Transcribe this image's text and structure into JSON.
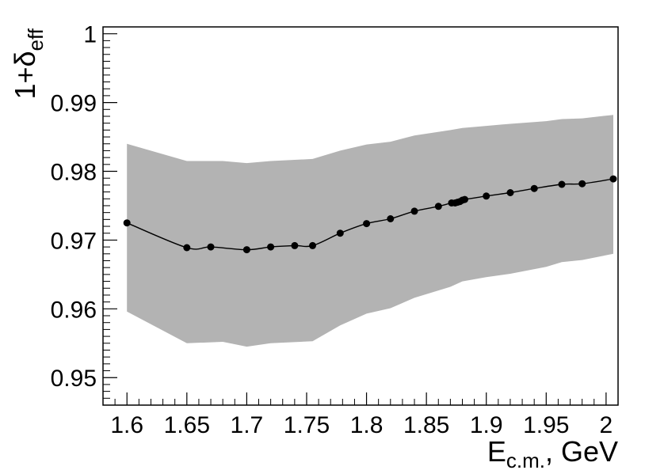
{
  "chart_data": {
    "type": "line",
    "xlabel_main": "E",
    "xlabel_sub": "c.m.",
    "xlabel_rest": ", GeV",
    "ylabel_main": "1+δ",
    "ylabel_sub": "eff",
    "xlim": [
      1.58,
      2.01
    ],
    "ylim": [
      0.946,
      1.001
    ],
    "x_ticks": [
      "1.6",
      "1.65",
      "1.7",
      "1.75",
      "1.8",
      "1.85",
      "1.9",
      "1.95",
      "2"
    ],
    "y_ticks": [
      "0.95",
      "0.96",
      "0.97",
      "0.98",
      "0.99",
      "1"
    ],
    "grid": false,
    "colors": {
      "band": "#b3b3b3",
      "line": "#000000",
      "points": "#000000"
    },
    "series": [
      {
        "x": [
          1.6,
          1.65,
          1.67,
          1.7,
          1.72,
          1.74,
          1.755,
          1.778,
          1.8,
          1.82,
          1.84,
          1.86,
          1.871,
          1.874,
          1.876,
          1.878,
          1.88,
          1.882,
          1.9,
          1.92,
          1.94,
          1.963,
          1.98,
          2.006
        ],
        "y": [
          0.9725,
          0.9689,
          0.969,
          0.9686,
          0.969,
          0.9692,
          0.9692,
          0.971,
          0.9724,
          0.9731,
          0.9742,
          0.9749,
          0.9754,
          0.9754,
          0.9755,
          0.9756,
          0.9758,
          0.9759,
          0.9764,
          0.9769,
          0.9775,
          0.9781,
          0.9782,
          0.9789
        ]
      }
    ],
    "band": {
      "x": [
        1.6,
        1.65,
        1.68,
        1.7,
        1.72,
        1.755,
        1.778,
        1.8,
        1.82,
        1.84,
        1.87,
        1.88,
        1.9,
        1.92,
        1.95,
        1.963,
        1.98,
        2.006
      ],
      "upper": [
        0.984,
        0.9815,
        0.9815,
        0.9812,
        0.9815,
        0.9818,
        0.983,
        0.9839,
        0.9843,
        0.9852,
        0.986,
        0.9863,
        0.9866,
        0.9869,
        0.9873,
        0.9876,
        0.9877,
        0.9882
      ],
      "lower": [
        0.9596,
        0.955,
        0.9552,
        0.9545,
        0.955,
        0.9553,
        0.9576,
        0.9593,
        0.9601,
        0.9616,
        0.9632,
        0.964,
        0.9646,
        0.9651,
        0.9661,
        0.9668,
        0.9671,
        0.968
      ]
    }
  }
}
